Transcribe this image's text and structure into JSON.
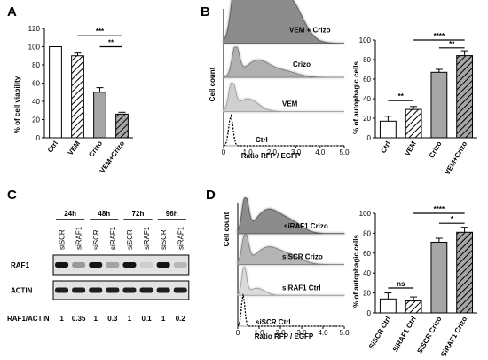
{
  "panels": {
    "A": {
      "label": "A",
      "chart_data": {
        "type": "bar",
        "ylabel": "% of cell viability",
        "ylim": [
          0,
          120
        ],
        "yticks": [
          0,
          20,
          40,
          60,
          80,
          100,
          120
        ],
        "categories": [
          "Ctrl",
          "VEM",
          "Crizo",
          "VEM+Crizo"
        ],
        "values": [
          100,
          90,
          50,
          26
        ],
        "errors": [
          0,
          3,
          5,
          2
        ],
        "fills": [
          "white",
          "hatch",
          "#a6a6a6",
          "hatch-gray"
        ],
        "significance": [
          {
            "from": 1,
            "to": 3,
            "label": "***",
            "y": 112
          },
          {
            "from": 2,
            "to": 3,
            "label": "**",
            "y": 100
          }
        ]
      }
    },
    "B": {
      "label": "B",
      "histogram": {
        "ylabel": "Cell count",
        "xlabel": "Ratio RFP / EGFP",
        "xticks": [
          "0",
          "1.0",
          "2.0",
          "3.0",
          "4.0",
          "5.0"
        ],
        "tracks": [
          "VEM + Crizo",
          "Crizo",
          "VEM",
          "Ctrl"
        ]
      },
      "chart_data": {
        "type": "bar",
        "ylabel": "% of autophagic cells",
        "ylim": [
          0,
          100
        ],
        "yticks": [
          0,
          20,
          40,
          60,
          80,
          100
        ],
        "categories": [
          "Ctrl",
          "VEM",
          "Crizo",
          "VEM+Crizo"
        ],
        "values": [
          17,
          29,
          67,
          84
        ],
        "errors": [
          5,
          3,
          3,
          5
        ],
        "fills": [
          "white",
          "hatch",
          "#a6a6a6",
          "hatch-gray"
        ],
        "significance": [
          {
            "from": 0,
            "to": 1,
            "label": "**",
            "y": 38
          },
          {
            "from": 2,
            "to": 3,
            "label": "**",
            "y": 92
          },
          {
            "from": 1,
            "to": 3,
            "label": "****",
            "y": 100
          }
        ]
      }
    },
    "C": {
      "label": "C",
      "timepoints": [
        "24h",
        "48h",
        "72h",
        "96h"
      ],
      "lanes": [
        "siSCR",
        "siRAF1",
        "siSCR",
        "siRAF1",
        "siSCR",
        "siRAF1",
        "siSCR",
        "siRAF1"
      ],
      "blots": [
        "RAF1",
        "ACTIN"
      ],
      "ratio_label": "RAF1/ACTIN",
      "ratios": [
        "1",
        "0.35",
        "1",
        "0.3",
        "1",
        "0.1",
        "1",
        "0.2"
      ],
      "raf1_intensity": [
        1,
        0.35,
        1,
        0.3,
        1,
        0.1,
        1,
        0.2
      ]
    },
    "D": {
      "label": "D",
      "histogram": {
        "ylabel": "Cell count",
        "xlabel": "Ratio RFP / EGFP",
        "xticks": [
          "0",
          "1.0",
          "2.0",
          "3.0",
          "4.0",
          "5.0"
        ],
        "tracks": [
          "siRAF1 Crizo",
          "siSCR Crizo",
          "siRAF1 Ctrl",
          "siSCR Ctrl"
        ]
      },
      "chart_data": {
        "type": "bar",
        "ylabel": "% of autophagic cells",
        "ylim": [
          0,
          100
        ],
        "yticks": [
          0,
          20,
          40,
          60,
          80,
          100
        ],
        "categories": [
          "SiSCR Ctrl",
          "SiRAF1 Ctrl",
          "SiSCR Crizo",
          "SiRAF1 Crizo"
        ],
        "values": [
          14,
          12,
          71,
          81
        ],
        "errors": [
          6,
          4,
          4,
          5
        ],
        "fills": [
          "white",
          "hatch",
          "#a6a6a6",
          "hatch-gray"
        ],
        "significance": [
          {
            "from": 0,
            "to": 1,
            "label": "ns",
            "y": 25
          },
          {
            "from": 2,
            "to": 3,
            "label": "*",
            "y": 90
          },
          {
            "from": 1,
            "to": 3,
            "label": "****",
            "y": 100
          }
        ]
      }
    }
  }
}
